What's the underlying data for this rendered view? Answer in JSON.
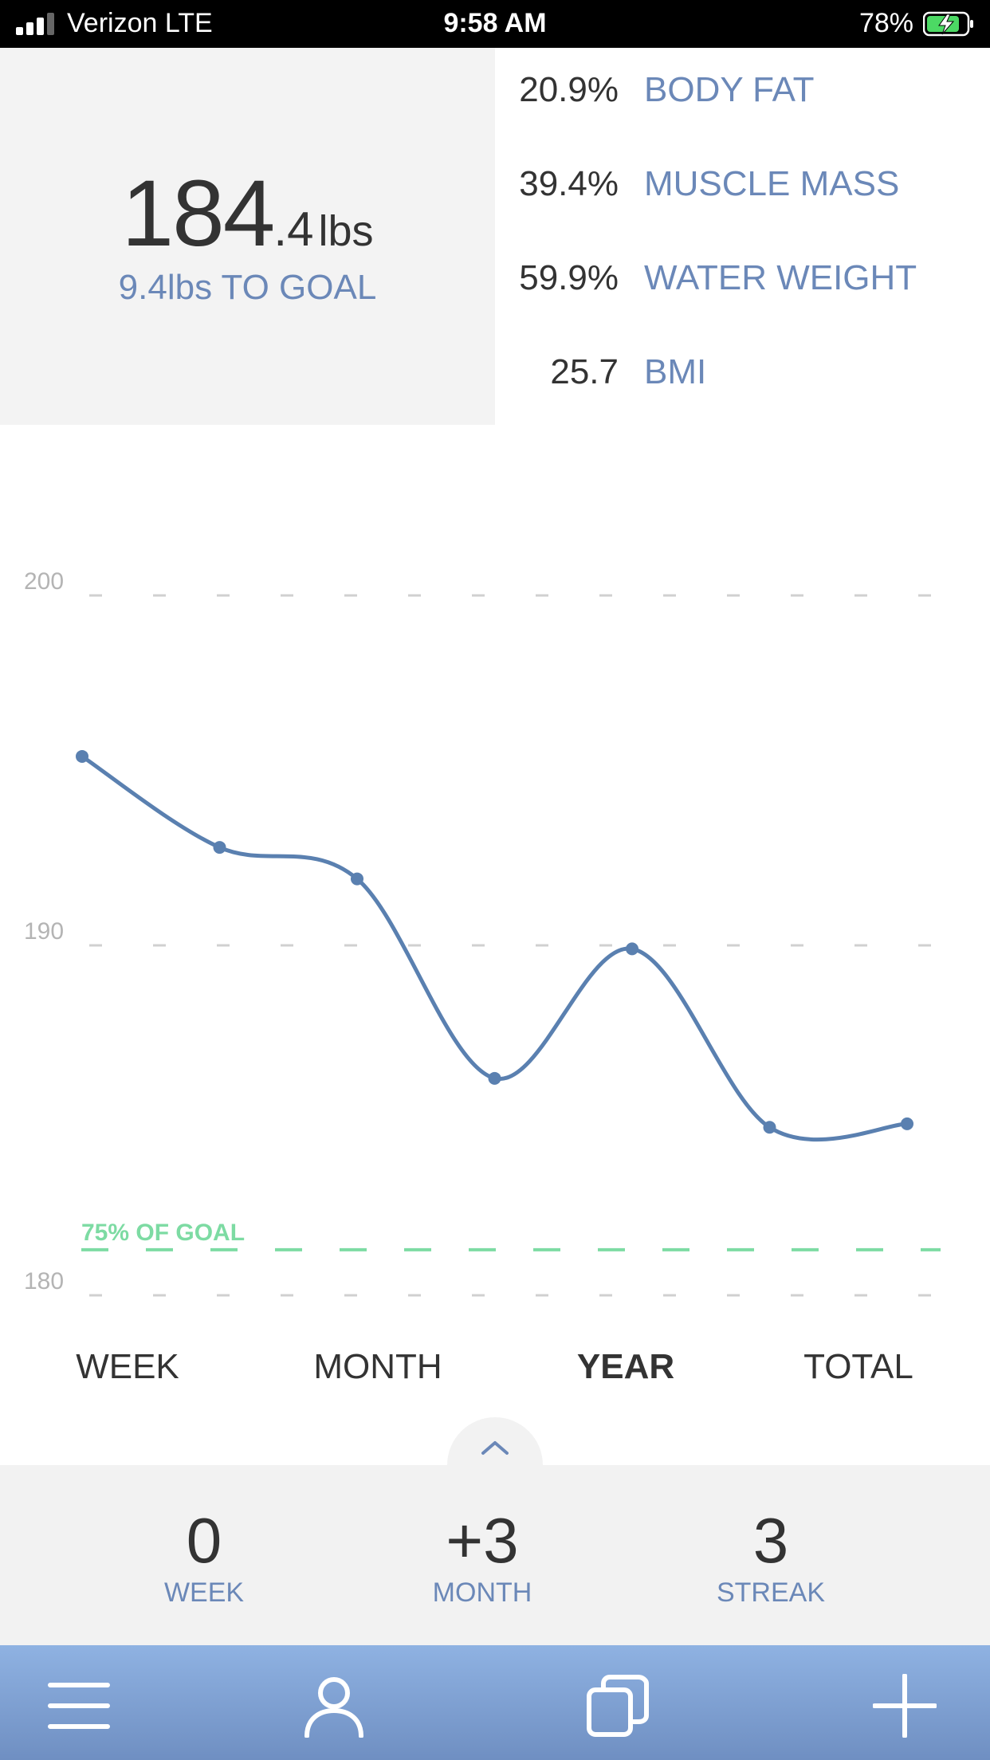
{
  "status_bar": {
    "carrier": "Verizon  LTE",
    "time": "9:58 AM",
    "battery": "78%",
    "battery_level": 0.78,
    "signal_bars": 3
  },
  "summary_top": {
    "weight_int": "184",
    "weight_dec": ".4",
    "weight_unit": "lbs",
    "to_goal": "9.4lbs TO GOAL"
  },
  "metrics": [
    {
      "value": "20.9%",
      "label": "BODY FAT"
    },
    {
      "value": "39.4%",
      "label": "MUSCLE MASS"
    },
    {
      "value": "59.9%",
      "label": "WATER WEIGHT"
    },
    {
      "value": "25.7",
      "label": "BMI"
    }
  ],
  "chart_data": {
    "type": "line",
    "ylim": [
      180,
      200
    ],
    "yticks": [
      "200",
      "190",
      "180"
    ],
    "values": [
      195.4,
      192.8,
      191.9,
      186.2,
      189.9,
      184.8,
      184.9
    ],
    "goal_line": {
      "value": 181.3,
      "label": "75% OF GOAL"
    },
    "colors": {
      "line": "#5a80b0",
      "goal": "#7ddba3",
      "grid": "#d0d0d0"
    },
    "grid": true
  },
  "range_tabs": [
    {
      "label": "WEEK",
      "active": false
    },
    {
      "label": "MONTH",
      "active": false
    },
    {
      "label": "YEAR",
      "active": true
    },
    {
      "label": "TOTAL",
      "active": false
    }
  ],
  "stats": [
    {
      "value": "0",
      "label": "WEEK"
    },
    {
      "value": "+3",
      "label": "MONTH"
    },
    {
      "value": "3",
      "label": "STREAK"
    }
  ],
  "tab_bar": {
    "icons": [
      "menu-icon",
      "profile-icon",
      "copy-icon",
      "add-icon"
    ]
  },
  "colors": {
    "accent": "#6b88b8",
    "text": "#333333",
    "panel": "#f3f3f3",
    "tab_bar_top": "#8fb2e2",
    "tab_bar_bottom": "#6f8fc2"
  }
}
